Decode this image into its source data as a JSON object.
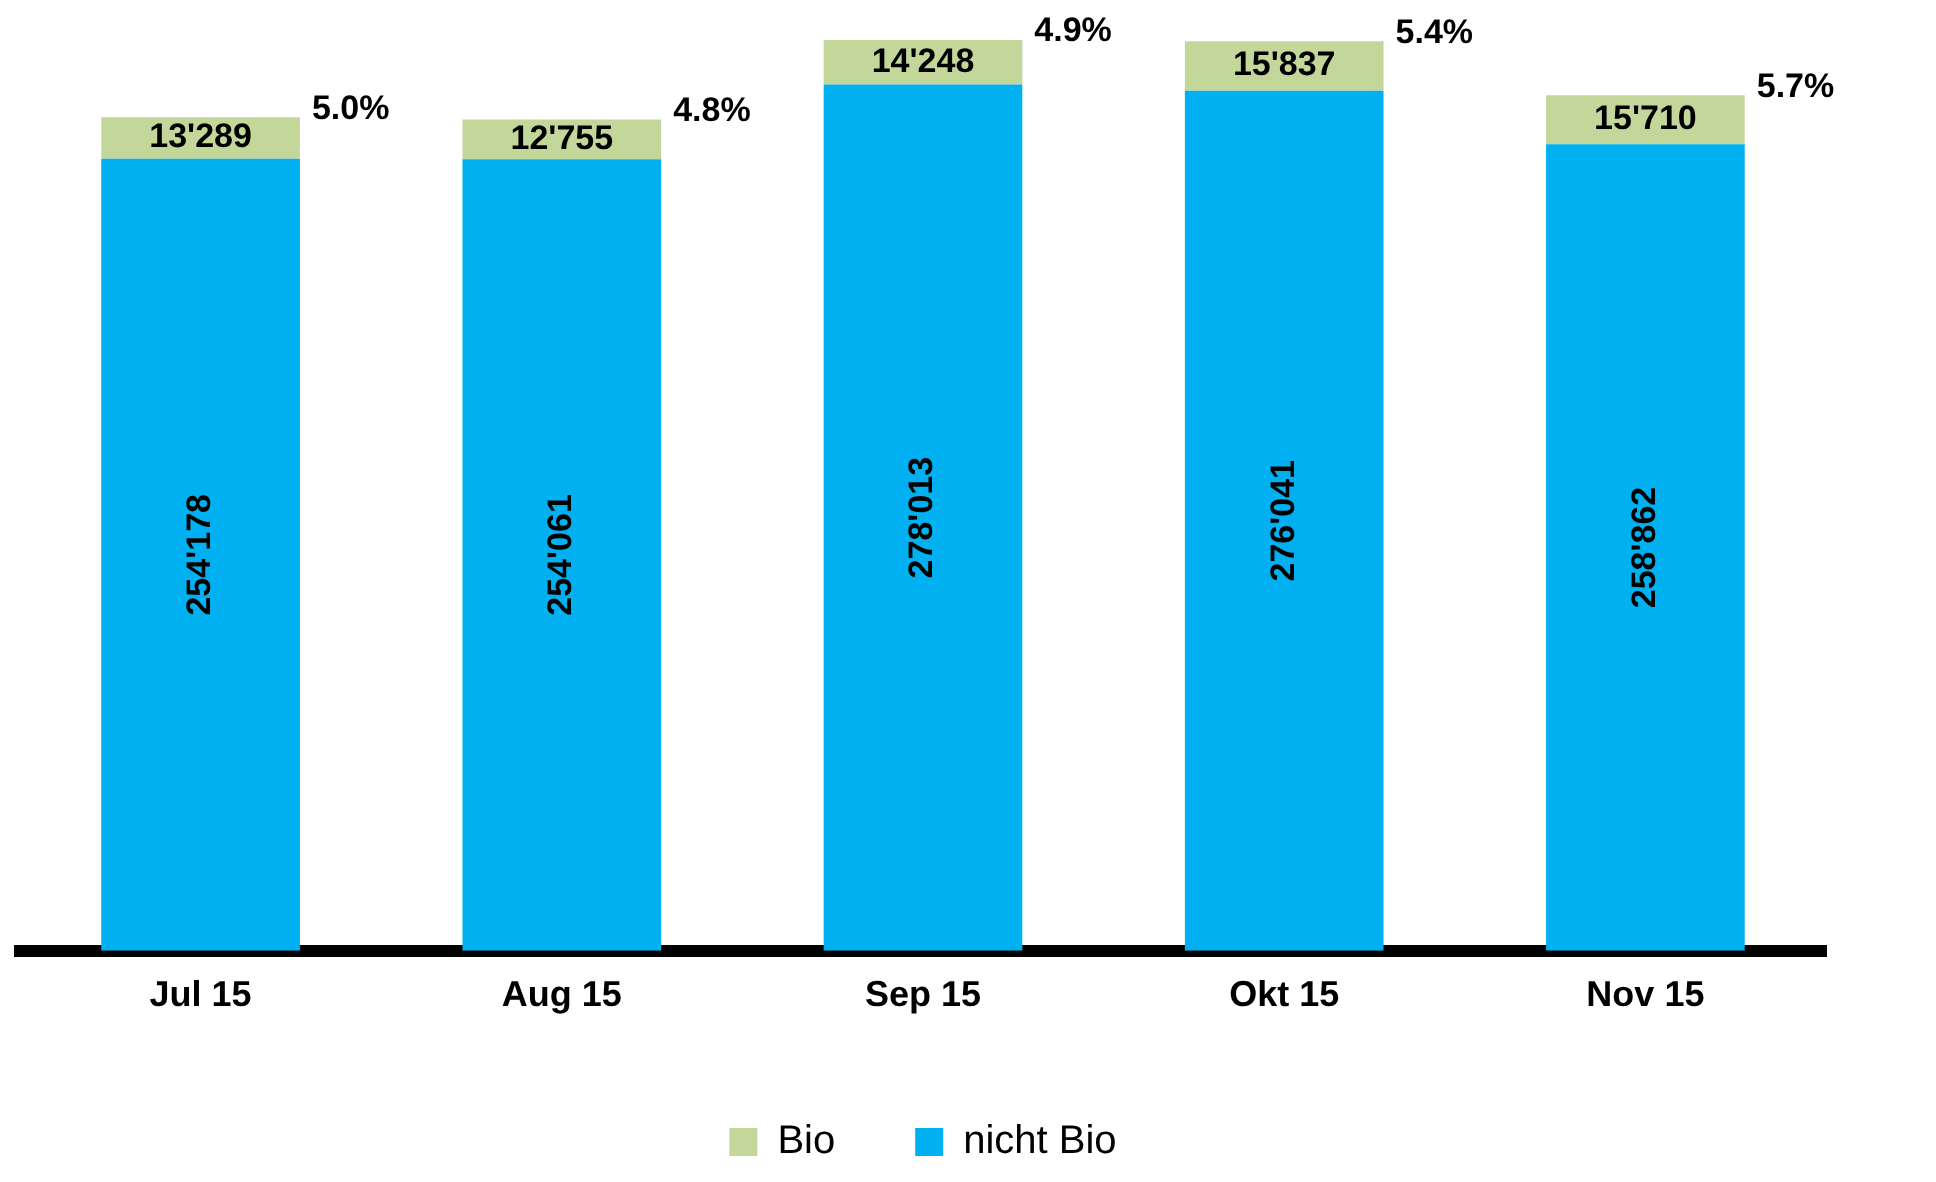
{
  "chart_data": {
    "type": "bar",
    "stacked": true,
    "categories": [
      "Jul 15",
      "Aug 15",
      "Sep 15",
      "Okt 15",
      "Nov 15"
    ],
    "series": [
      {
        "name": "nicht Bio",
        "color": "#00b0f0",
        "values": [
          254178,
          254061,
          278013,
          276041,
          258862
        ],
        "value_labels": [
          "254'178",
          "254'061",
          "278'013",
          "276'041",
          "258'862"
        ]
      },
      {
        "name": "Bio",
        "color": "#c4d79b",
        "values": [
          13289,
          12755,
          14248,
          15837,
          15710
        ],
        "value_labels": [
          "13'289",
          "12'755",
          "14'248",
          "15'837",
          "15'710"
        ]
      }
    ],
    "tick_labels": "x",
    "grid": false,
    "legend": "bottom",
    "annotations": [
      "5.0%",
      "4.8%",
      "4.9%",
      "5.4%",
      "5.7%"
    ]
  }
}
